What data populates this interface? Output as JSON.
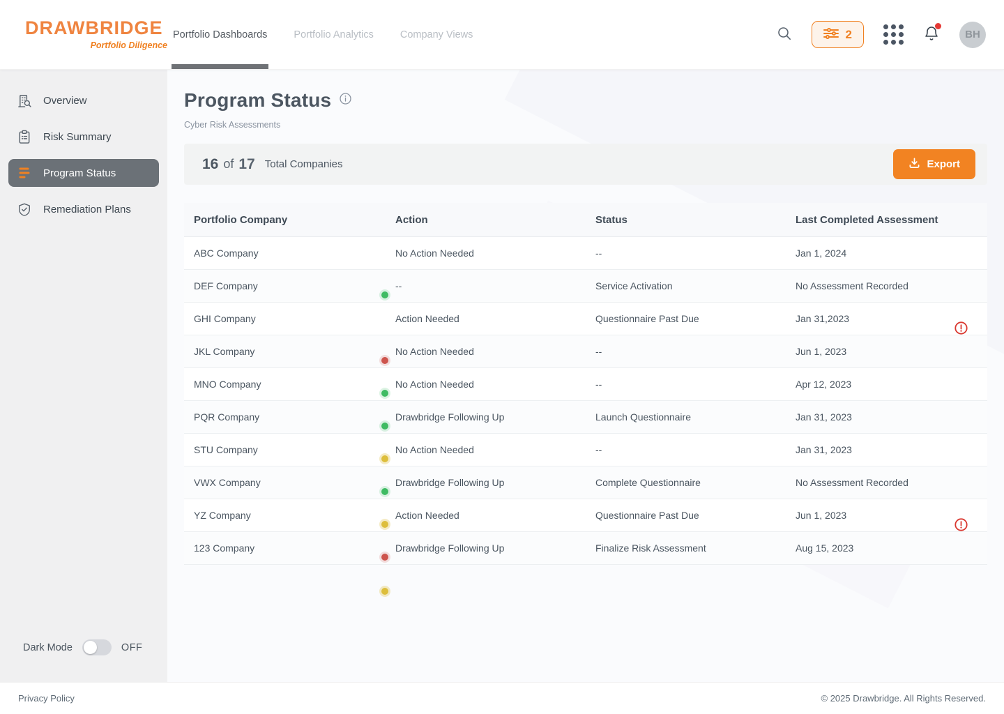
{
  "brand": {
    "name": "DRAWBRIDGE",
    "tagline": "Portfolio Diligence"
  },
  "nav": {
    "tabs": [
      {
        "label": "Portfolio Dashboards",
        "active": true
      },
      {
        "label": "Portfolio Analytics",
        "active": false
      },
      {
        "label": "Company Views",
        "active": false
      }
    ]
  },
  "header_actions": {
    "filter_count": "2",
    "avatar_initials": "BH"
  },
  "sidebar": {
    "items": [
      {
        "label": "Overview",
        "icon": "building-search-icon",
        "active": false
      },
      {
        "label": "Risk Summary",
        "icon": "clipboard-icon",
        "active": false
      },
      {
        "label": "Program Status",
        "icon": "program-bars-icon",
        "active": true
      },
      {
        "label": "Remediation Plans",
        "icon": "shield-check-icon",
        "active": false
      }
    ],
    "dark_mode": {
      "label": "Dark Mode",
      "state": "OFF",
      "enabled": false
    }
  },
  "page": {
    "title": "Program Status",
    "subtitle": "Cyber Risk Assessments"
  },
  "summary": {
    "count": "16",
    "of_label": "of",
    "total": "17",
    "caption": "Total Companies",
    "export_label": "Export"
  },
  "table": {
    "columns": [
      "Portfolio Company",
      "Action",
      "Status",
      "Last Completed Assessment"
    ],
    "rows": [
      {
        "company": "ABC Company",
        "action": "No Action Needed",
        "status": "--",
        "last_assessment": "Jan 1, 2024",
        "dot": null,
        "alert": false
      },
      {
        "company": "DEF Company",
        "action": "--",
        "status": "Service Activation",
        "last_assessment": "No Assessment Recorded",
        "dot": "green",
        "alert": false
      },
      {
        "company": "GHI Company",
        "action": "Action Needed",
        "status": "Questionnaire Past Due",
        "last_assessment": "Jan 31,2023",
        "dot": null,
        "alert": true
      },
      {
        "company": "JKL Company",
        "action": "No Action Needed",
        "status": "--",
        "last_assessment": "Jun 1, 2023",
        "dot": "red",
        "alert": false
      },
      {
        "company": "MNO Company",
        "action": "No Action Needed",
        "status": "--",
        "last_assessment": "Apr 12, 2023",
        "dot": "green",
        "alert": false
      },
      {
        "company": "PQR Company",
        "action": "Drawbridge Following Up",
        "status": "Launch Questionnaire",
        "last_assessment": "Jan 31, 2023",
        "dot": "green",
        "alert": false
      },
      {
        "company": "STU Company",
        "action": "No Action Needed",
        "status": "--",
        "last_assessment": "Jan 31, 2023",
        "dot": "yellow",
        "alert": false
      },
      {
        "company": "VWX Company",
        "action": "Drawbridge Following Up",
        "status": "Complete Questionnaire",
        "last_assessment": "No Assessment Recorded",
        "dot": "green",
        "alert": false
      },
      {
        "company": "YZ Company",
        "action": "Action Needed",
        "status": "Questionnaire Past Due",
        "last_assessment": "Jun 1, 2023",
        "dot": "yellow",
        "alert": true
      },
      {
        "company": "123 Company",
        "action": "Drawbridge Following Up",
        "status": "Finalize Risk Assessment",
        "last_assessment": "Aug 15, 2023",
        "dot": "red",
        "alert": false
      }
    ],
    "trailing_dot": "yellow"
  },
  "footer": {
    "privacy": "Privacy Policy",
    "copyright": "© 2025 Drawbridge. All Rights Reserved."
  },
  "colors": {
    "accent_orange": "#F08122",
    "active_sidebar": "#6B7177",
    "dot_green": "#3FBB63",
    "dot_red": "#CD544D",
    "dot_yellow": "#DDBE3C",
    "alert_red": "#D93830"
  }
}
